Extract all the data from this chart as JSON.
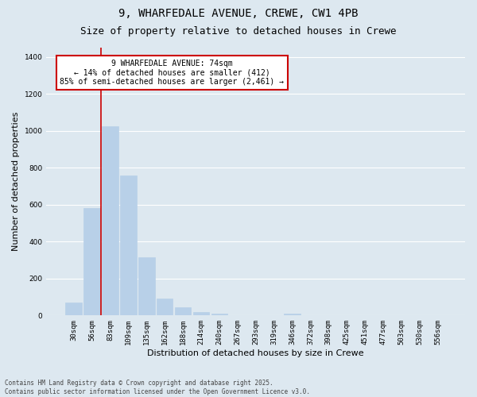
{
  "title_line1": "9, WHARFEDALE AVENUE, CREWE, CW1 4PB",
  "title_line2": "Size of property relative to detached houses in Crewe",
  "xlabel": "Distribution of detached houses by size in Crewe",
  "ylabel": "Number of detached properties",
  "categories": [
    "30sqm",
    "56sqm",
    "83sqm",
    "109sqm",
    "135sqm",
    "162sqm",
    "188sqm",
    "214sqm",
    "240sqm",
    "267sqm",
    "293sqm",
    "319sqm",
    "346sqm",
    "372sqm",
    "398sqm",
    "425sqm",
    "451sqm",
    "477sqm",
    "503sqm",
    "530sqm",
    "556sqm"
  ],
  "values": [
    70,
    580,
    1025,
    760,
    315,
    90,
    43,
    20,
    10,
    0,
    0,
    0,
    12,
    0,
    0,
    0,
    0,
    0,
    0,
    0,
    0
  ],
  "bar_color": "#b8d0e8",
  "bar_edge_color": "#b8d0e8",
  "background_color": "#dde8f0",
  "plot_bg_color": "#dde8f0",
  "grid_color": "#ffffff",
  "annotation_text": "9 WHARFEDALE AVENUE: 74sqm\n← 14% of detached houses are smaller (412)\n85% of semi-detached houses are larger (2,461) →",
  "annotation_box_facecolor": "#ffffff",
  "annotation_box_edgecolor": "#cc0000",
  "vline_color": "#cc0000",
  "vline_x": 1.5,
  "ylim": [
    0,
    1450
  ],
  "yticks": [
    0,
    200,
    400,
    600,
    800,
    1000,
    1200,
    1400
  ],
  "footer_line1": "Contains HM Land Registry data © Crown copyright and database right 2025.",
  "footer_line2": "Contains public sector information licensed under the Open Government Licence v3.0.",
  "title_fontsize": 10,
  "subtitle_fontsize": 9,
  "tick_fontsize": 6.5,
  "ylabel_fontsize": 8,
  "xlabel_fontsize": 8,
  "annotation_fontsize": 7,
  "footer_fontsize": 5.5
}
